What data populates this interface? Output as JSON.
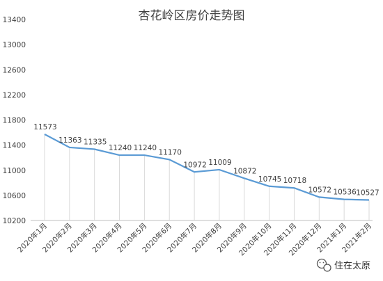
{
  "chart_data": {
    "type": "line",
    "title": "杏花岭区房价走势图",
    "xlabel": "",
    "ylabel": "",
    "categories": [
      "2020年1月",
      "2020年2月",
      "2020年3月",
      "2020年4月",
      "2020年5月",
      "2020年6月",
      "2020年7月",
      "2020年8月",
      "2020年9月",
      "2020年10月",
      "2020年11月",
      "2020年12月",
      "2021年1月",
      "2021年2月"
    ],
    "series": [
      {
        "values": [
          11573,
          11363,
          11335,
          11240,
          11240,
          11170,
          10972,
          11009,
          10872,
          10745,
          10718,
          10572,
          10536,
          10527
        ]
      }
    ],
    "ylim": [
      10200,
      13400
    ],
    "ytick_step": 400,
    "grid": "vertical",
    "data_labels": true,
    "colors": {
      "line": "#5B9BD5",
      "grid": "#d9d9d9",
      "text": "#404040"
    }
  },
  "watermark": {
    "text": "住在太原",
    "icon": "wechat-icon"
  }
}
